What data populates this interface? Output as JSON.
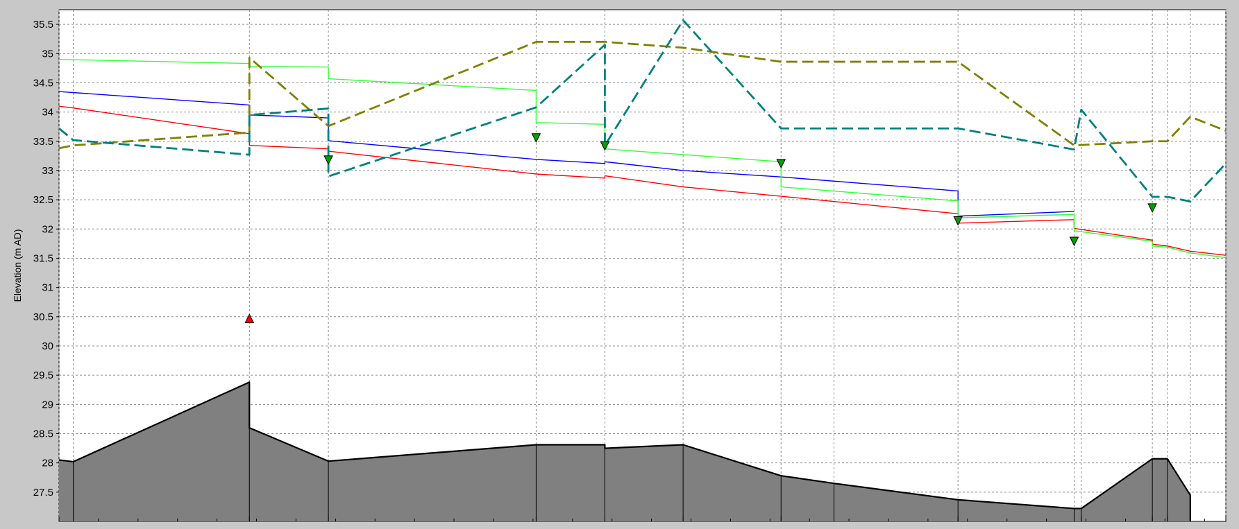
{
  "chart_data": {
    "type": "line",
    "title": "",
    "xlabel": "",
    "ylabel": "Elevation (m AD)",
    "ylim": [
      27.0,
      35.75
    ],
    "xlim": [
      0,
      1477
    ],
    "grid": true,
    "yticks": [
      27.5,
      28,
      28.5,
      29,
      29.5,
      30,
      30.5,
      31,
      31.5,
      32,
      32.5,
      33,
      33.5,
      34,
      34.5,
      35,
      35.5
    ],
    "ytick_labels": [
      "27.5",
      "28",
      "28.5",
      "29",
      "29.5",
      "30",
      "30.5",
      "31",
      "31.5",
      "32",
      "32.5",
      "33",
      "33.5",
      "34",
      "34.5",
      "35",
      "35.5"
    ],
    "node_chainages": [
      0,
      18,
      241,
      341,
      604,
      691,
      790,
      914,
      981,
      1138,
      1285,
      1294,
      1384,
      1403,
      1432,
      1477
    ],
    "ground": {
      "x": [
        0,
        18,
        241,
        241,
        341,
        604,
        691,
        691,
        790,
        914,
        981,
        1138,
        1285,
        1294,
        1384,
        1403,
        1432,
        1432
      ],
      "y": [
        28.05,
        28.02,
        29.38,
        28.6,
        28.03,
        28.31,
        28.31,
        28.25,
        28.31,
        27.78,
        27.65,
        27.37,
        27.22,
        27.22,
        28.07,
        28.07,
        27.45,
        27.0
      ]
    },
    "series": [
      {
        "color": "#0000ff",
        "style": "solid",
        "x": [
          0,
          241,
          241,
          341,
          341,
          604,
          691,
          691,
          790,
          914,
          1138,
          1138,
          1285
        ],
        "y": [
          34.35,
          34.12,
          33.95,
          33.9,
          33.51,
          33.19,
          33.12,
          33.15,
          33.0,
          32.89,
          32.65,
          32.22,
          32.3
        ]
      },
      {
        "color": "#ff0000",
        "style": "solid",
        "x": [
          0,
          18,
          241,
          241,
          341,
          341,
          604,
          691,
          691,
          790,
          914,
          1138,
          1138,
          1285,
          1285,
          1384,
          1384,
          1403,
          1432,
          1477
        ],
        "y": [
          34.1,
          34.07,
          33.63,
          33.43,
          33.37,
          33.33,
          32.94,
          32.87,
          32.91,
          32.72,
          32.56,
          32.26,
          32.1,
          32.16,
          32.01,
          31.81,
          31.74,
          31.71,
          31.62,
          31.55
        ]
      },
      {
        "color": "#33ff33",
        "style": "solid",
        "x": [
          0,
          241,
          241,
          341,
          341,
          604,
          604,
          691,
          691,
          914,
          914,
          1138,
          1138,
          1285,
          1285,
          1384,
          1384,
          1403,
          1432,
          1477
        ],
        "y": [
          34.9,
          34.83,
          34.78,
          34.77,
          34.57,
          34.37,
          33.82,
          33.79,
          33.37,
          33.15,
          32.72,
          32.48,
          32.19,
          32.25,
          31.97,
          31.79,
          31.71,
          31.69,
          31.59,
          31.51
        ]
      },
      {
        "color": "#808000",
        "style": "dashed",
        "x": [
          0,
          18,
          241,
          241,
          341,
          604,
          691,
          790,
          914,
          1138,
          1285,
          1384,
          1403,
          1432,
          1477
        ],
        "y": [
          33.38,
          33.43,
          33.65,
          34.93,
          33.76,
          35.2,
          35.2,
          35.1,
          34.86,
          34.86,
          33.43,
          33.5,
          33.5,
          33.92,
          33.68
        ]
      },
      {
        "color": "#008080",
        "style": "dashed",
        "x": [
          0,
          18,
          241,
          241,
          341,
          341,
          604,
          691,
          691,
          790,
          914,
          1138,
          1285,
          1294,
          1384,
          1403,
          1432,
          1477
        ],
        "y": [
          33.72,
          33.52,
          33.27,
          33.95,
          34.06,
          32.9,
          34.08,
          35.15,
          33.43,
          35.57,
          33.72,
          33.72,
          33.36,
          34.04,
          32.55,
          32.55,
          32.47,
          33.12
        ]
      }
    ],
    "markers": [
      {
        "type": "triangle-down",
        "color": "#00a000",
        "x": [
          341,
          604,
          691,
          914,
          1138,
          1285,
          1384
        ],
        "y": [
          33.18,
          33.56,
          33.42,
          33.12,
          32.14,
          31.79,
          32.36
        ]
      },
      {
        "type": "triangle-up",
        "color": "#ff0000",
        "x": [
          241
        ],
        "y": [
          30.47
        ]
      }
    ]
  }
}
